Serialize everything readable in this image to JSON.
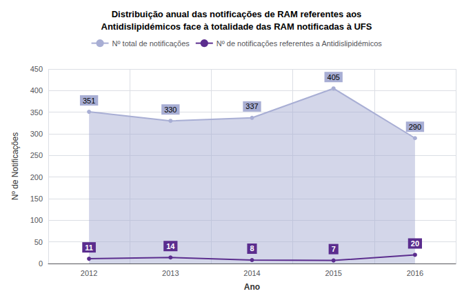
{
  "chart_data": {
    "type": "line",
    "title": "Distribuição anual das notificações de RAM referentes aos\nAntidislipidémicos face à totalidade das RAM notificadas à UFS",
    "xlabel": "Ano",
    "ylabel": "Nº de Notificações",
    "categories": [
      "2012",
      "2013",
      "2014",
      "2015",
      "2016"
    ],
    "series": [
      {
        "name": "Nº total de notificações",
        "type": "area",
        "color": "#a8aed4",
        "values": [
          351,
          330,
          337,
          405,
          290
        ]
      },
      {
        "name": "Nº de notificações referentes a Antidislipidémicos",
        "type": "line",
        "color": "#5b2d8e",
        "values": [
          11,
          14,
          8,
          7,
          20
        ]
      }
    ],
    "ylim": [
      0,
      450
    ],
    "yticks": [
      0,
      50,
      100,
      150,
      200,
      250,
      300,
      350,
      400,
      450
    ],
    "grid": true,
    "legend": "top",
    "data_labels": true,
    "marker": "circle"
  }
}
